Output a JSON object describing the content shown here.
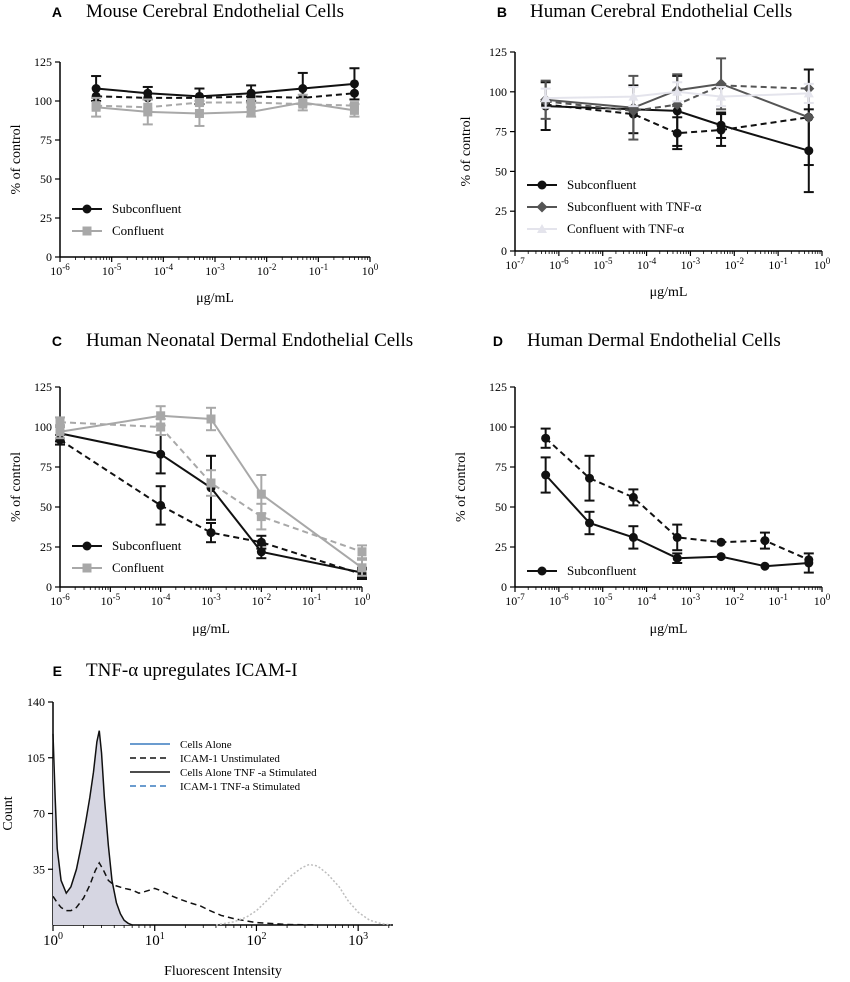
{
  "chart_data": [
    {
      "id": "A",
      "letter": "A",
      "type": "line",
      "title": "Mouse Cerebral Endothelial Cells",
      "xlabel": "μg/mL",
      "ylabel": "% of control",
      "xscale": "log",
      "xlim_exp": [
        -6,
        0
      ],
      "ylim": [
        0,
        125
      ],
      "yticks": [
        0,
        25,
        50,
        75,
        100,
        125
      ],
      "xticks_exp": [
        -6,
        -5,
        -4,
        -3,
        -2,
        -1,
        0
      ],
      "legend_position": "bottom-left",
      "series": [
        {
          "name": "Subconfluent",
          "color": "#111111",
          "dash": "solid",
          "marker": "circle",
          "x": [
            5e-06,
            5e-05,
            0.0005,
            0.005,
            0.05,
            0.5
          ],
          "y": [
            108,
            105,
            103,
            105,
            108,
            111
          ],
          "err": [
            8,
            4,
            5,
            5,
            10,
            10
          ]
        },
        {
          "name": "",
          "color": "#111111",
          "dash": "dashed",
          "marker": "circle",
          "x": [
            5e-06,
            5e-05,
            0.0005,
            0.005,
            0.05,
            0.5
          ],
          "y": [
            103,
            102,
            102,
            103,
            102,
            105
          ],
          "err": [
            0,
            0,
            0,
            0,
            0,
            0
          ]
        },
        {
          "name": "Confluent",
          "color": "#a8a8a8",
          "dash": "solid",
          "marker": "square",
          "x": [
            5e-06,
            5e-05,
            0.0005,
            0.005,
            0.05,
            0.5
          ],
          "y": [
            96,
            93,
            92,
            93,
            99,
            94
          ],
          "err": [
            6,
            8,
            8,
            3,
            5,
            4
          ]
        },
        {
          "name": "",
          "color": "#a8a8a8",
          "dash": "dashed",
          "marker": "square",
          "x": [
            5e-06,
            5e-05,
            0.0005,
            0.005,
            0.05,
            0.5
          ],
          "y": [
            97,
            96,
            99,
            99,
            98,
            97
          ],
          "err": [
            0,
            0,
            0,
            0,
            0,
            0
          ]
        }
      ]
    },
    {
      "id": "B",
      "letter": "B",
      "type": "line",
      "title": "Human Cerebral Endothelial Cells",
      "xlabel": "μg/mL",
      "ylabel": "% of control",
      "xscale": "log",
      "xlim_exp": [
        -7,
        0
      ],
      "ylim": [
        0,
        125
      ],
      "yticks": [
        0,
        25,
        50,
        75,
        100,
        125
      ],
      "xticks_exp": [
        -7,
        -6,
        -5,
        -4,
        -3,
        -2,
        -1,
        0
      ],
      "legend_position": "bottom-left",
      "series": [
        {
          "name": "Subconfluent",
          "color": "#111111",
          "dash": "solid",
          "marker": "circle",
          "x": [
            5e-07,
            5e-05,
            0.0005,
            0.005,
            0.5
          ],
          "y": [
            91,
            89,
            88,
            79,
            63
          ],
          "err": [
            15,
            15,
            22,
            8,
            26
          ]
        },
        {
          "name": "",
          "color": "#111111",
          "dash": "dashed",
          "marker": "circle",
          "x": [
            5e-07,
            5e-05,
            0.0005,
            0.005,
            0.5
          ],
          "y": [
            92,
            86,
            74,
            76,
            84
          ],
          "err": [
            0,
            0,
            10,
            10,
            30
          ]
        },
        {
          "name": "Subconfluent with TNF-α",
          "color": "#555555",
          "dash": "solid",
          "marker": "diamond",
          "x": [
            5e-07,
            5e-05,
            0.0005,
            0.005,
            0.5
          ],
          "y": [
            95,
            90,
            101,
            105,
            84
          ],
          "err": [
            12,
            20,
            10,
            16,
            0
          ]
        },
        {
          "name": "",
          "color": "#555555",
          "dash": "dashed",
          "marker": "diamond",
          "x": [
            5e-07,
            5e-05,
            0.0005,
            0.005,
            0.5
          ],
          "y": [
            94,
            88,
            92,
            104,
            102
          ],
          "err": [
            0,
            0,
            0,
            0,
            0
          ]
        },
        {
          "name": "Confluent with TNF-α",
          "color": "#e4e4ec",
          "dash": "solid",
          "marker": "triangle",
          "x": [
            5e-07,
            5e-05,
            0.0005,
            0.005,
            0.5
          ],
          "y": [
            96,
            97,
            100,
            97,
            99
          ],
          "err": [
            6,
            6,
            6,
            6,
            6
          ]
        }
      ]
    },
    {
      "id": "C",
      "letter": "C",
      "type": "line",
      "title": "Human Neonatal Dermal Endothelial Cells",
      "xlabel": "μg/mL",
      "ylabel": "% of control",
      "xscale": "log",
      "xlim_exp": [
        -6,
        0
      ],
      "ylim": [
        0,
        125
      ],
      "yticks": [
        0,
        25,
        50,
        75,
        100,
        125
      ],
      "xticks_exp": [
        -6,
        -5,
        -4,
        -3,
        -2,
        -1,
        0
      ],
      "legend_position": "bottom-left",
      "series": [
        {
          "name": "Subconfluent",
          "color": "#111111",
          "dash": "solid",
          "marker": "circle",
          "x": [
            1e-06,
            0.0001,
            0.001,
            0.01,
            1
          ],
          "y": [
            96,
            83,
            62,
            22,
            9
          ],
          "err": [
            5,
            12,
            20,
            4,
            3
          ]
        },
        {
          "name": "",
          "color": "#111111",
          "dash": "dashed",
          "marker": "circle",
          "x": [
            1e-06,
            0.0001,
            0.001,
            0.01,
            1
          ],
          "y": [
            92,
            51,
            34,
            28,
            8
          ],
          "err": [
            3,
            12,
            6,
            4,
            3
          ]
        },
        {
          "name": "Confluent",
          "color": "#a8a8a8",
          "dash": "solid",
          "marker": "square",
          "x": [
            1e-06,
            0.0001,
            0.001,
            0.01,
            1
          ],
          "y": [
            97,
            107,
            105,
            58,
            12
          ],
          "err": [
            4,
            6,
            7,
            12,
            5
          ]
        },
        {
          "name": "",
          "color": "#a8a8a8",
          "dash": "dashed",
          "marker": "square",
          "x": [
            1e-06,
            0.0001,
            0.001,
            0.01,
            1
          ],
          "y": [
            103,
            100,
            65,
            44,
            22
          ],
          "err": [
            3,
            5,
            8,
            8,
            4
          ]
        }
      ]
    },
    {
      "id": "D",
      "letter": "D",
      "type": "line",
      "title": "Human Dermal Endothelial Cells",
      "xlabel": "μg/mL",
      "ylabel": "% of control",
      "xscale": "log",
      "xlim_exp": [
        -7,
        0
      ],
      "ylim": [
        0,
        125
      ],
      "yticks": [
        0,
        25,
        50,
        75,
        100,
        125
      ],
      "xticks_exp": [
        -7,
        -6,
        -5,
        -4,
        -3,
        -2,
        -1,
        0
      ],
      "legend_position": "bottom-left",
      "series": [
        {
          "name": "Subconfluent",
          "color": "#111111",
          "dash": "solid",
          "marker": "circle",
          "x": [
            5e-07,
            5e-06,
            5e-05,
            0.0005,
            0.005,
            0.05,
            0.5
          ],
          "y": [
            70,
            40,
            31,
            18,
            19,
            13,
            15
          ],
          "err": [
            11,
            7,
            7,
            3,
            0,
            0,
            6
          ]
        },
        {
          "name": "",
          "color": "#111111",
          "dash": "dashed",
          "marker": "circle",
          "x": [
            5e-07,
            5e-06,
            5e-05,
            0.0005,
            0.005,
            0.05,
            0.5
          ],
          "y": [
            93,
            68,
            56,
            31,
            28,
            29,
            17
          ],
          "err": [
            6,
            14,
            5,
            8,
            0,
            5,
            0
          ]
        }
      ]
    },
    {
      "id": "E",
      "letter": "E",
      "type": "area",
      "title": "TNF-α upregulates ICAM-I",
      "xlabel": "Fluorescent Intensity",
      "ylabel": "Count",
      "xscale": "log",
      "xlim": [
        1,
        2200
      ],
      "ylim": [
        0,
        140
      ],
      "yticks": [
        35,
        70,
        105,
        140
      ],
      "xticks": [
        {
          "value": 1,
          "label": "10",
          "exp": "0"
        },
        {
          "value": 10,
          "label": "10",
          "exp": "1"
        },
        {
          "value": 100,
          "label": "10",
          "exp": "2"
        },
        {
          "value": 1000,
          "label": "10",
          "exp": "3"
        }
      ],
      "legend_position": "top-center",
      "legend": [
        {
          "label": "Cells Alone",
          "color": "#3a7bbf",
          "dash": "solid"
        },
        {
          "label": "ICAM-1 Unstimulated",
          "color": "#111111",
          "dash": "dashed"
        },
        {
          "label": "Cells Alone TNF -a Stimulated",
          "color": "#111111",
          "dash": "solid"
        },
        {
          "label": "ICAM-1 TNF-a Stimulated",
          "color": "#3a7bbf",
          "dash": "dashed"
        }
      ],
      "series": [
        {
          "name": "Cells Alone / TNF-a Stimulated (filled)",
          "color": "#111111",
          "fill": "#d6d6e2",
          "x": [
            1,
            1.05,
            1.1,
            1.2,
            1.35,
            1.5,
            1.7,
            1.9,
            2.1,
            2.3,
            2.5,
            2.7,
            2.85,
            3.0,
            3.2,
            3.5,
            3.8,
            4.2,
            4.6,
            5.0,
            5.5,
            6
          ],
          "y": [
            120,
            80,
            48,
            28,
            20,
            24,
            35,
            50,
            65,
            80,
            96,
            115,
            122,
            108,
            80,
            50,
            28,
            14,
            7,
            3,
            1,
            0
          ]
        },
        {
          "name": "ICAM-1 Unstimulated",
          "color": "#111111",
          "dash": "dashed",
          "x": [
            1,
            1.1,
            1.2,
            1.35,
            1.5,
            1.7,
            2.0,
            2.3,
            2.6,
            2.85,
            3.1,
            3.5,
            4,
            5,
            6,
            7,
            8,
            9,
            10,
            11,
            13,
            15,
            18,
            22,
            28,
            35,
            45,
            60,
            80,
            100,
            150,
            200,
            400
          ],
          "y": [
            18,
            14,
            11,
            9,
            9,
            11,
            17,
            25,
            34,
            39,
            35,
            28,
            25,
            23,
            22,
            20,
            21,
            22,
            23,
            22,
            20,
            18,
            16,
            14,
            12,
            9,
            6,
            4,
            2.5,
            1.5,
            0.8,
            0.3,
            0
          ]
        },
        {
          "name": "ICAM-1 TNF-a Stimulated",
          "color": "#bdbdbd",
          "dash": "dotted",
          "x": [
            40,
            60,
            80,
            100,
            130,
            170,
            220,
            280,
            330,
            400,
            500,
            650,
            800,
            1000,
            1300,
            1700,
            2100
          ],
          "y": [
            0,
            2,
            5,
            9,
            16,
            24,
            31,
            36,
            38,
            37,
            32,
            24,
            15,
            8,
            3,
            0.8,
            0
          ]
        }
      ]
    }
  ]
}
